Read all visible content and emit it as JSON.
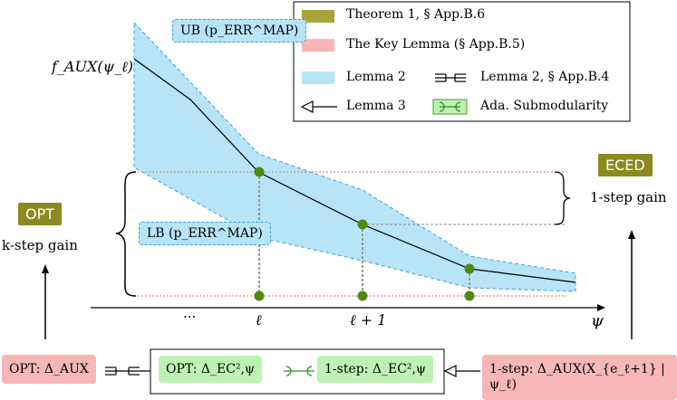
{
  "legend": {
    "items": [
      {
        "label": "Theorem 1, § App.B.6",
        "swatch": "#a7a438"
      },
      {
        "label": "The Key Lemma (§ App.B.5)",
        "swatch": "#f7b6b6"
      },
      {
        "label": "Lemma 2",
        "swatch": "#b8e4f8"
      },
      {
        "label": "Lemma 2, § App.B.4",
        "swatch": "connector"
      },
      {
        "label": "Lemma 3",
        "swatch": "arrow"
      },
      {
        "label": "Ada. Submodularity",
        "swatch": "green-connector"
      }
    ]
  },
  "plot": {
    "y_label": "f_AUX(ψ_ℓ)",
    "ub_label": "UB (p_ERR^MAP)",
    "lb_label": "LB (p_ERR^MAP)",
    "x_ticks": [
      "···",
      "ℓ",
      "ℓ + 1"
    ],
    "x_axis_label": "ψ"
  },
  "left_annotation": {
    "tag": "OPT",
    "text": "k-step gain"
  },
  "right_annotation": {
    "tag": "ECED",
    "text": "1-step gain"
  },
  "bottom": {
    "left_box": "OPT: Δ_AUX",
    "mid_left_box": "OPT: Δ_EC²,ψ",
    "mid_right_box": "1-step: Δ_EC²,ψ",
    "right_box": "1-step: Δ_AUX(X_{e_ℓ+1} | ψ_ℓ)"
  },
  "colors": {
    "olive": "#8a8a1e",
    "pink": "#f7b7b7",
    "blue": "#b8e4f8",
    "green": "#bdf2b4",
    "dot": "#4f8a10"
  }
}
